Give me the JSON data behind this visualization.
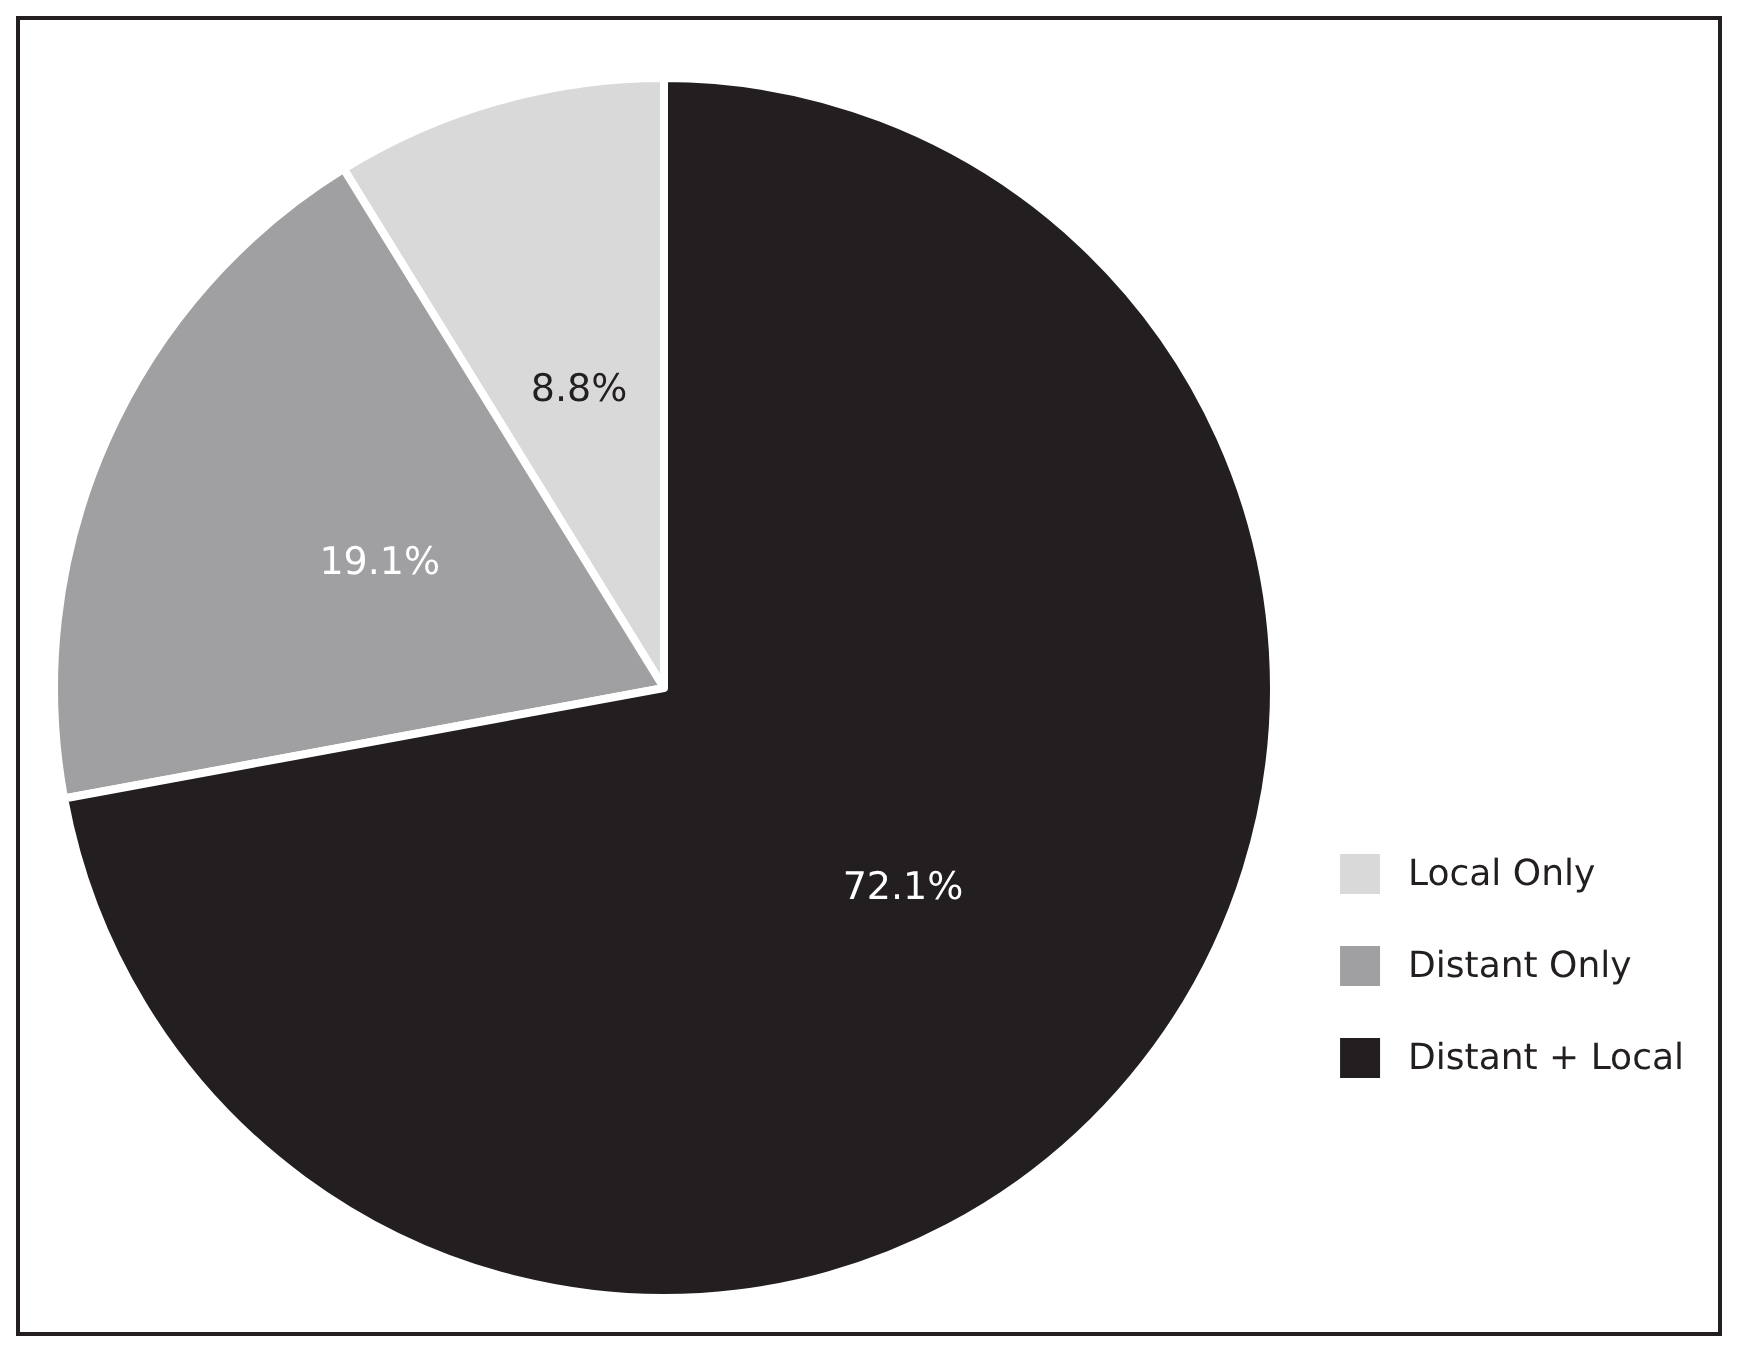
{
  "chart_data": {
    "type": "pie",
    "categories": [
      "Local Only",
      "Distant Only",
      "Distant + Local"
    ],
    "values": [
      8.8,
      19.1,
      72.1
    ],
    "colors": [
      "#d9d9da",
      "#a0a0a3",
      "#231f20"
    ],
    "value_labels": [
      "8.8%",
      "19.1%",
      "72.1%"
    ],
    "legend": "bottom right"
  }
}
